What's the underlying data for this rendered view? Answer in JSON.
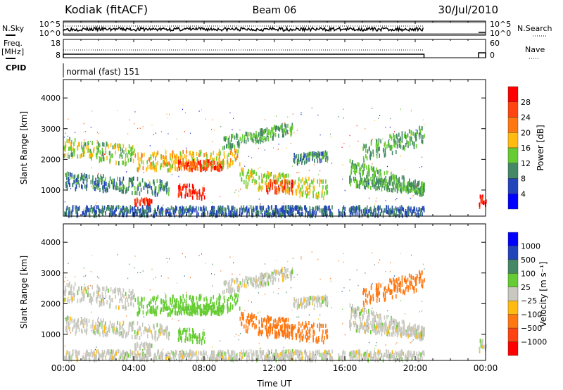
{
  "header": {
    "station": "Kodiak (fitACF)",
    "beam": "Beam 06",
    "date": "30/Jul/2010"
  },
  "colors": {
    "power": [
      "#0000ff",
      "#2244bb",
      "#448866",
      "#66cc33",
      "#ffbb11",
      "#ff7711",
      "#ff4411",
      "#ff0000"
    ],
    "velocity": [
      "#0000ff",
      "#2244bb",
      "#448866",
      "#66cc33",
      "#c8c8c0",
      "#ffbb11",
      "#ff7711",
      "#ff4411",
      "#ff0000"
    ]
  },
  "chart_data": {
    "type": "scatter",
    "xlabel": "Time UT",
    "xticks": [
      "00:00",
      "04:00",
      "08:00",
      "12:00",
      "16:00",
      "20:00",
      "00:00"
    ],
    "xlim_hours": [
      0,
      24
    ],
    "ylim_km": [
      150,
      4600
    ],
    "yticks": [
      "1000",
      "2000",
      "3000",
      "4000"
    ],
    "top_panels": {
      "nsky": {
        "label": "N.Sky",
        "right_label": "N.Search",
        "left_ticks": [
          "10^5",
          "10^0"
        ],
        "right_ticks": [
          "10^5",
          "10^0"
        ]
      },
      "freq": {
        "label": "Freq.",
        "unit": "[MHz]",
        "right_label": "Nave",
        "left_ticks": [
          "18",
          "8"
        ],
        "right_ticks": [
          "60",
          "0"
        ]
      },
      "cpid": {
        "label": "CPID",
        "value": "normal (fast) 151"
      }
    },
    "power_panel": {
      "ylabel": "Slant Range [km]",
      "colorbar_label": "Power [dB]",
      "colorbar_ticks": [
        "28",
        "24",
        "20",
        "16",
        "12",
        "8",
        "4"
      ]
    },
    "velocity_panel": {
      "ylabel": "Slant Range [km]",
      "colorbar_label": "Velocity [m s⁻¹]",
      "colorbar_ticks": [
        "1000",
        "500",
        "100",
        "25",
        "−25",
        "−100",
        "−500",
        "−1000"
      ]
    },
    "data_gaps_hours": [
      [
        15.3,
        15.6
      ],
      [
        16.0,
        16.2
      ],
      [
        20.5,
        23.6
      ]
    ],
    "echo_regions": [
      {
        "t": [
          0,
          4
        ],
        "r": [
          2400,
          2100
        ],
        "w": 300,
        "power": 14,
        "velocity": 0
      },
      {
        "t": [
          4,
          10
        ],
        "r": [
          1900,
          2000
        ],
        "w": 300,
        "power": 18,
        "velocity": 60
      },
      {
        "t": [
          6.5,
          9
        ],
        "r": [
          1800,
          1800
        ],
        "w": 150,
        "power": 26,
        "velocity": 60
      },
      {
        "t": [
          9,
          13
        ],
        "r": [
          2500,
          3000
        ],
        "w": 200,
        "power": 12,
        "velocity": 0
      },
      {
        "t": [
          0,
          6
        ],
        "r": [
          1300,
          1050
        ],
        "w": 250,
        "power": 10,
        "velocity": 0
      },
      {
        "t": [
          6.5,
          8
        ],
        "r": [
          1000,
          900
        ],
        "w": 200,
        "power": 28,
        "velocity": 60
      },
      {
        "t": [
          4,
          5
        ],
        "r": [
          600,
          600
        ],
        "w": 100,
        "power": 28,
        "velocity": 0
      },
      {
        "t": [
          10,
          15
        ],
        "r": [
          1400,
          1000
        ],
        "w": 300,
        "power": 16,
        "velocity": -200
      },
      {
        "t": [
          11.5,
          13
        ],
        "r": [
          1100,
          1100
        ],
        "w": 200,
        "power": 26,
        "velocity": -200
      },
      {
        "t": [
          13,
          15
        ],
        "r": [
          2000,
          2100
        ],
        "w": 150,
        "power": 10,
        "velocity": 0
      },
      {
        "t": [
          16,
          20.5
        ],
        "r": [
          1800,
          1000
        ],
        "w": 200,
        "power": 12,
        "velocity": 0
      },
      {
        "t": [
          17,
          20.5
        ],
        "r": [
          2200,
          2800
        ],
        "w": 300,
        "power": 12,
        "velocity": -300
      },
      {
        "t": [
          16,
          20.5
        ],
        "r": [
          1300,
          1000
        ],
        "w": 150,
        "power": 12,
        "velocity": 0
      },
      {
        "t": [
          0,
          20.5
        ],
        "r": [
          300,
          300
        ],
        "w": 150,
        "power": 8,
        "velocity": 0
      },
      {
        "t": [
          23.6,
          24
        ],
        "r": [
          600,
          600
        ],
        "w": 200,
        "power": 28,
        "velocity": 0
      }
    ]
  }
}
